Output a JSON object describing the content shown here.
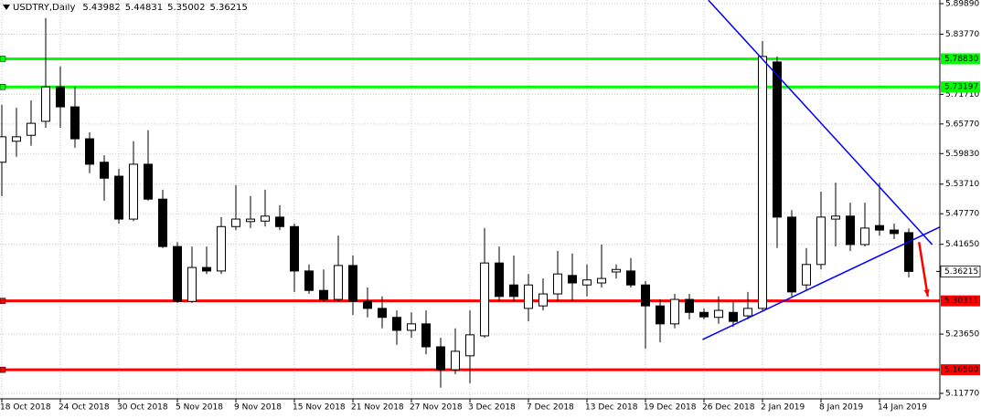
{
  "chart_data": {
    "type": "candlestick",
    "title": "USDTRY,Daily",
    "header_values": [
      5.43982,
      5.44831,
      5.35002,
      5.36215
    ],
    "categories": [
      "18 Oct 2018",
      null,
      null,
      null,
      "24 Oct 2018",
      null,
      null,
      null,
      "30 Oct 2018",
      null,
      null,
      null,
      "5 Nov 2018",
      null,
      null,
      null,
      "9 Nov 2018",
      null,
      null,
      null,
      "15 Nov 2018",
      null,
      null,
      null,
      "21 Nov 2018",
      null,
      null,
      null,
      "27 Nov 2018",
      null,
      null,
      null,
      "3 Dec 2018",
      null,
      null,
      null,
      "7 Dec 2018",
      null,
      null,
      null,
      "13 Dec 2018",
      null,
      null,
      null,
      "19 Dec 2018",
      null,
      null,
      null,
      "26 Dec 2018",
      null,
      null,
      null,
      "2 Jan 2019",
      null,
      null,
      null,
      "8 Jan 2019",
      null,
      null,
      null,
      "14 Jan 2019",
      null,
      null
    ],
    "open": [
      5.581,
      5.623,
      5.635,
      5.663,
      5.732,
      5.692,
      5.628,
      5.581,
      5.553,
      5.467,
      5.577,
      5.507,
      5.412,
      5.302,
      5.37,
      5.363,
      5.452,
      5.462,
      5.463,
      5.471,
      5.452,
      5.363,
      5.324,
      5.306,
      5.374,
      5.302,
      5.288,
      5.27,
      5.244,
      5.257,
      5.211,
      5.165,
      5.193,
      5.233,
      5.379,
      5.335,
      5.288,
      5.293,
      5.317,
      5.354,
      5.335,
      5.339,
      5.361,
      5.363,
      5.335,
      5.293,
      5.257,
      5.306,
      5.28,
      5.27,
      5.28,
      5.273,
      5.288,
      5.782,
      5.471,
      5.335,
      5.376,
      5.467,
      5.473,
      5.416,
      5.454,
      5.445,
      5.43982
    ],
    "high": [
      5.696,
      5.69,
      5.705,
      5.87,
      5.773,
      5.732,
      5.641,
      5.595,
      5.568,
      5.623,
      5.645,
      5.526,
      5.421,
      5.412,
      5.412,
      5.471,
      5.535,
      5.513,
      5.526,
      5.495,
      5.458,
      5.376,
      5.366,
      5.434,
      5.394,
      5.33,
      5.312,
      5.284,
      5.28,
      5.284,
      5.229,
      5.248,
      5.284,
      5.449,
      5.412,
      5.394,
      5.357,
      5.348,
      5.403,
      5.398,
      5.376,
      5.416,
      5.376,
      5.389,
      5.343,
      5.306,
      5.317,
      5.317,
      5.288,
      5.312,
      5.302,
      5.321,
      5.824,
      5.793,
      5.485,
      5.409,
      5.522,
      5.54,
      5.5,
      5.5,
      5.54,
      5.458,
      5.44831
    ],
    "low": [
      5.513,
      5.592,
      5.614,
      5.65,
      5.65,
      5.61,
      5.559,
      5.504,
      5.458,
      5.463,
      5.504,
      5.409,
      5.299,
      5.299,
      5.357,
      5.357,
      5.445,
      5.449,
      5.452,
      5.445,
      5.321,
      5.317,
      5.302,
      5.302,
      5.275,
      5.27,
      5.248,
      5.215,
      5.229,
      5.196,
      5.129,
      5.156,
      5.138,
      5.229,
      5.302,
      5.302,
      5.262,
      5.284,
      5.302,
      5.302,
      5.312,
      5.33,
      5.348,
      5.33,
      5.207,
      5.22,
      5.248,
      5.266,
      5.266,
      5.257,
      5.251,
      5.266,
      5.284,
      5.409,
      5.312,
      5.324,
      5.366,
      5.412,
      5.403,
      5.412,
      5.434,
      5.427,
      5.35002
    ],
    "close": [
      5.632,
      5.632,
      5.659,
      5.732,
      5.692,
      5.628,
      5.577,
      5.549,
      5.467,
      5.577,
      5.507,
      5.412,
      5.302,
      5.37,
      5.363,
      5.452,
      5.467,
      5.467,
      5.473,
      5.452,
      5.363,
      5.324,
      5.306,
      5.374,
      5.302,
      5.288,
      5.27,
      5.244,
      5.257,
      5.211,
      5.165,
      5.202,
      5.235,
      5.379,
      5.312,
      5.312,
      5.335,
      5.317,
      5.357,
      5.339,
      5.345,
      5.348,
      5.366,
      5.335,
      5.293,
      5.257,
      5.306,
      5.28,
      5.271,
      5.284,
      5.262,
      5.288,
      5.793,
      5.471,
      5.321,
      5.376,
      5.471,
      5.473,
      5.416,
      5.449,
      5.445,
      5.438,
      5.36215
    ],
    "up_color": "#ffffff",
    "down_color": "#000000",
    "edge_color": "#000000",
    "ylim": [
      5.1067,
      5.9062
    ],
    "yticks": [
      {
        "value": 5.8989,
        "label": "5.89890"
      },
      {
        "value": 5.8377,
        "label": "5.83770"
      },
      {
        "value": 5.7171,
        "label": "5.71710"
      },
      {
        "value": 5.6577,
        "label": "5.65770"
      },
      {
        "value": 5.5983,
        "label": "5.59830"
      },
      {
        "value": 5.5371,
        "label": "5.53710"
      },
      {
        "value": 5.4777,
        "label": "5.47770"
      },
      {
        "value": 5.4165,
        "label": "5.41650"
      },
      {
        "value": 5.2365,
        "label": "5.23650"
      },
      {
        "value": 5.1177,
        "label": "5.11770"
      }
    ],
    "grid": true,
    "current_price": 5.36215,
    "levels": [
      {
        "value": 5.7883,
        "label": "5.78830",
        "color": "#00ff00"
      },
      {
        "value": 5.73197,
        "label": "5.73197",
        "color": "#00ff00"
      },
      {
        "value": 5.30311,
        "label": "5.30311",
        "color": "#ff0000"
      },
      {
        "value": 5.165,
        "label": "5.16500",
        "color": "#ff0000"
      }
    ],
    "trendlines": [
      {
        "color": "#0000ff",
        "x": [
          48.3,
          63.6
        ],
        "y": [
          5.906,
          5.416
        ]
      },
      {
        "color": "#0000ff",
        "x": [
          47.9,
          64.1
        ],
        "y": [
          5.2256,
          5.4507
        ]
      }
    ],
    "arrows": [
      {
        "color": "#ff0000",
        "x": [
          62.7,
          63.3
        ],
        "y": [
          5.421,
          5.312
        ]
      }
    ]
  }
}
